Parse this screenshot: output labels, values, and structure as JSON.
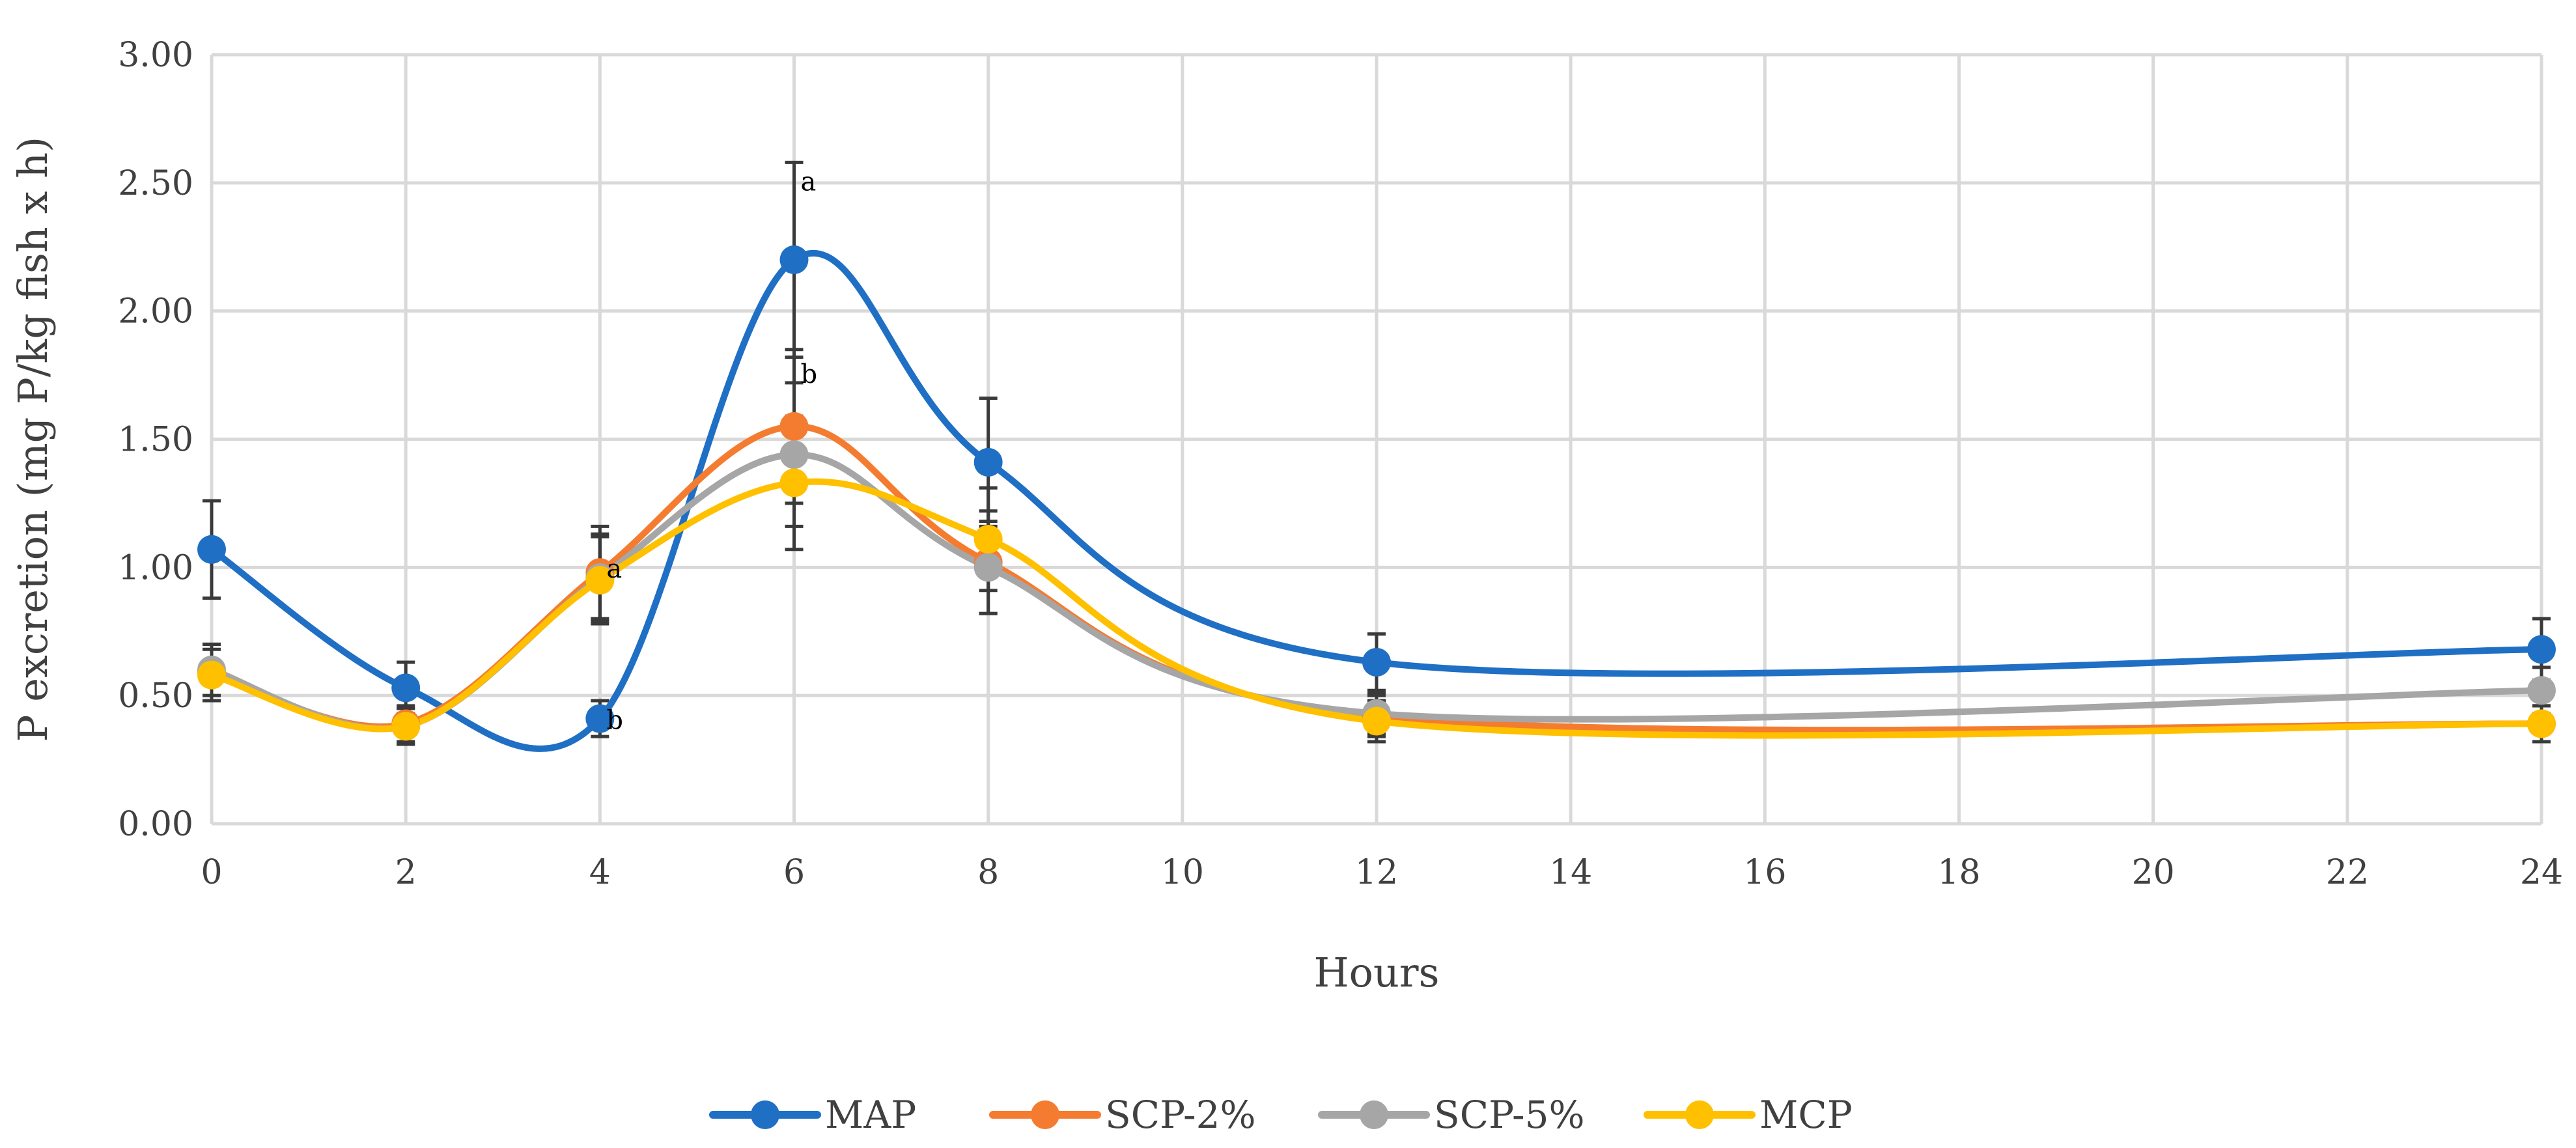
{
  "chart_data": {
    "type": "line",
    "title": "",
    "xlabel": "Hours",
    "ylabel": "P excretion (mg P/kg fish x h)",
    "xlim": [
      0,
      24
    ],
    "ylim": [
      0,
      3
    ],
    "x_ticks": [
      0,
      2,
      4,
      6,
      8,
      10,
      12,
      14,
      16,
      18,
      20,
      22,
      24
    ],
    "x_tick_labels": [
      "0",
      "2",
      "4",
      "6",
      "8",
      "10",
      "12",
      "14",
      "16",
      "18",
      "20",
      "22",
      "24"
    ],
    "y_ticks": [
      0,
      0.5,
      1,
      1.5,
      2,
      2.5,
      3
    ],
    "y_tick_labels": [
      "0.00",
      "0.50",
      "1.00",
      "1.50",
      "2.00",
      "2.50",
      "3.00"
    ],
    "grid": true,
    "smooth": true,
    "legend_position": "bottom",
    "x": [
      0,
      2,
      4,
      6,
      8,
      12,
      24
    ],
    "series": [
      {
        "name": "MAP",
        "color": "#1f6fc4",
        "values": [
          1.07,
          0.53,
          0.41,
          2.2,
          1.41,
          0.63,
          0.68
        ],
        "errors": [
          0.19,
          0.1,
          0.07,
          0.38,
          0.25,
          0.11,
          0.12
        ]
      },
      {
        "name": "SCP-2%",
        "color": "#f47c30",
        "values": [
          0.59,
          0.39,
          0.98,
          1.55,
          1.02,
          0.42,
          0.39
        ],
        "errors": [
          0.11,
          0.07,
          0.18,
          0.3,
          0.2,
          0.08,
          0.07
        ]
      },
      {
        "name": "SCP-5%",
        "color": "#a6a6a6",
        "values": [
          0.6,
          0.38,
          0.96,
          1.44,
          1.0,
          0.43,
          0.52
        ],
        "errors": [
          0.1,
          0.07,
          0.17,
          0.28,
          0.18,
          0.08,
          0.09
        ]
      },
      {
        "name": "MCP",
        "color": "#ffc000",
        "values": [
          0.58,
          0.38,
          0.95,
          1.33,
          1.11,
          0.4,
          0.39
        ],
        "errors": [
          0.1,
          0.07,
          0.17,
          0.26,
          0.2,
          0.08,
          0.07
        ]
      }
    ],
    "annotations": [
      {
        "text": "a",
        "x": 6,
        "y": 2.47
      },
      {
        "text": "b",
        "x": 6,
        "y": 1.72
      },
      {
        "text": "a",
        "x": 4,
        "y": 0.96
      },
      {
        "text": "b",
        "x": 4,
        "y": 0.37
      }
    ]
  }
}
